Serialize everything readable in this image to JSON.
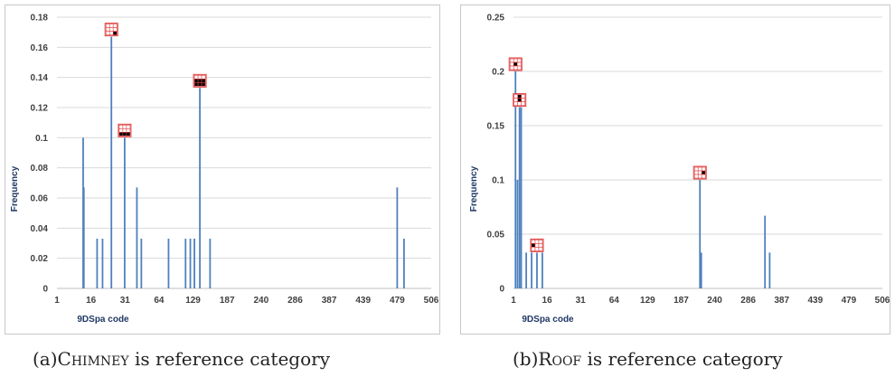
{
  "captions": [
    {
      "prefix": "(a)",
      "name": "Chimney",
      "suffix": " is reference category"
    },
    {
      "prefix": "(b)",
      "name": "Roof",
      "suffix": " is reference category"
    }
  ],
  "colors": {
    "bar": "#4f81bd",
    "grid": "#d9d9d9",
    "glyph_border": "#e04040",
    "glyph_fill": "#000000"
  },
  "icons": [
    "grid-glyph-icon"
  ],
  "chart_data": [
    {
      "type": "bar",
      "xlabel": "9DSpa code",
      "ylabel": "Frequency",
      "ylim": [
        0,
        0.18
      ],
      "yticks": [
        0,
        0.02,
        0.04,
        0.06,
        0.08,
        0.1,
        0.12,
        0.14,
        0.16,
        0.18
      ],
      "ytick_labels": [
        "0",
        "0.02",
        "0.04",
        "0.06",
        "0.08",
        "0.1",
        "0.12",
        "0.14",
        "0.16",
        "0.18"
      ],
      "x_tick_labels": [
        "1",
        "16",
        "31",
        "64",
        "129",
        "187",
        "240",
        "286",
        "387",
        "439",
        "479",
        "506"
      ],
      "grid": true,
      "bars": [
        {
          "x_index": 3.85,
          "value": 0.1
        },
        {
          "x_index": 3.95,
          "value": 0.067
        },
        {
          "x_index": 5.9,
          "value": 0.033
        },
        {
          "x_index": 6.7,
          "value": 0.033
        },
        {
          "x_index": 8.0,
          "value": 0.167,
          "glyph": [
            [
              0,
              0,
              0
            ],
            [
              0,
              0,
              0
            ],
            [
              0,
              0,
              1
            ]
          ]
        },
        {
          "x_index": 9.95,
          "value": 0.1,
          "glyph": [
            [
              0,
              0,
              0
            ],
            [
              0,
              0,
              0
            ],
            [
              1,
              1,
              1
            ]
          ]
        },
        {
          "x_index": 11.75,
          "value": 0.067
        },
        {
          "x_index": 12.4,
          "value": 0.033
        },
        {
          "x_index": 16.4,
          "value": 0.033
        },
        {
          "x_index": 18.9,
          "value": 0.033
        },
        {
          "x_index": 19.6,
          "value": 0.033
        },
        {
          "x_index": 20.2,
          "value": 0.033
        },
        {
          "x_index": 21.0,
          "value": 0.133,
          "glyph": [
            [
              0,
              0,
              0
            ],
            [
              1,
              1,
              1
            ],
            [
              1,
              1,
              1
            ]
          ]
        },
        {
          "x_index": 22.5,
          "value": 0.033
        },
        {
          "x_index": 50.0,
          "value": 0.067
        },
        {
          "x_index": 51.0,
          "value": 0.033
        }
      ]
    },
    {
      "type": "bar",
      "xlabel": "9DSpa code",
      "ylabel": "Frequency",
      "ylim": [
        0,
        0.25
      ],
      "yticks": [
        0,
        0.05,
        0.1,
        0.15,
        0.2,
        0.25
      ],
      "ytick_labels": [
        "0",
        "0.05",
        "0.1",
        "0.15",
        "0.2",
        "0.25"
      ],
      "x_tick_labels": [
        "1",
        "16",
        "31",
        "64",
        "129",
        "187",
        "240",
        "286",
        "387",
        "439",
        "479",
        "506"
      ],
      "grid": true,
      "bars": [
        {
          "x_index": 0.3,
          "value": 0.2,
          "glyph": [
            [
              0,
              0,
              0
            ],
            [
              0,
              1,
              0
            ],
            [
              0,
              0,
              0
            ]
          ]
        },
        {
          "x_index": 0.6,
          "value": 0.1
        },
        {
          "x_index": 0.9,
          "value": 0.167,
          "glyph": [
            [
              0,
              1,
              0
            ],
            [
              0,
              1,
              0
            ],
            [
              0,
              0,
              0
            ]
          ]
        },
        {
          "x_index": 1.15,
          "value": 0.167
        },
        {
          "x_index": 1.9,
          "value": 0.033
        },
        {
          "x_index": 2.7,
          "value": 0.033
        },
        {
          "x_index": 3.5,
          "value": 0.033,
          "glyph": [
            [
              0,
              0,
              0
            ],
            [
              1,
              0,
              0
            ],
            [
              0,
              0,
              0
            ]
          ]
        },
        {
          "x_index": 4.3,
          "value": 0.033
        },
        {
          "x_index": 27.8,
          "value": 0.1,
          "glyph": [
            [
              0,
              0,
              0
            ],
            [
              0,
              0,
              1
            ],
            [
              0,
              0,
              0
            ]
          ]
        },
        {
          "x_index": 28.0,
          "value": 0.033
        },
        {
          "x_index": 37.5,
          "value": 0.067
        },
        {
          "x_index": 38.2,
          "value": 0.033
        }
      ]
    }
  ]
}
